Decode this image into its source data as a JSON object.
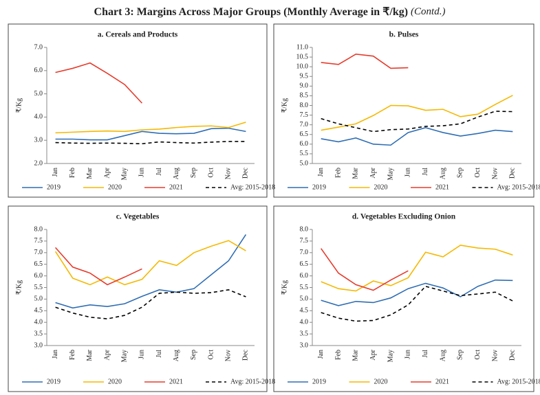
{
  "title": "Chart 3: Margins Across Major Groups (Monthly Average in ₹/kg)",
  "title_note": "(Contd.)",
  "chart_data": [
    {
      "type": "line",
      "title": "a. Cereals and Products",
      "y_label": "₹/Kg",
      "categories": [
        "Jan",
        "Feb",
        "Mar",
        "Apr",
        "May",
        "Jun",
        "Jul",
        "Aug",
        "Sep",
        "Oct",
        "Nov",
        "Dec"
      ],
      "ylim": [
        2,
        7
      ],
      "yticks": [
        {
          "value": 2,
          "label": "2.0"
        },
        {
          "value": 3,
          "label": "3.0"
        },
        {
          "value": 4,
          "label": "4.0"
        },
        {
          "value": 5,
          "label": "5.0"
        },
        {
          "value": 6,
          "label": "6.0"
        },
        {
          "value": 7,
          "label": "7.0"
        }
      ],
      "legend": "bottom",
      "series": [
        {
          "name": "2019",
          "color": "#2e6db4",
          "line_style": "solid",
          "values": [
            3.05,
            3.05,
            3.02,
            3.02,
            3.2,
            3.38,
            3.3,
            3.28,
            3.3,
            3.5,
            3.52,
            3.38
          ]
        },
        {
          "name": "2020",
          "color": "#f5b800",
          "line_style": "solid",
          "values": [
            3.32,
            3.35,
            3.38,
            3.4,
            3.38,
            3.45,
            3.48,
            3.55,
            3.6,
            3.62,
            3.55,
            3.78
          ]
        },
        {
          "name": "2021",
          "color": "#e53b2c",
          "line_style": "solid",
          "values": [
            5.92,
            6.1,
            6.33,
            5.88,
            5.4,
            4.6,
            null,
            null,
            null,
            null,
            null,
            null
          ]
        },
        {
          "name": "Avg: 2015-2018",
          "color": "#000000",
          "line_style": "dashed",
          "values": [
            2.9,
            2.88,
            2.87,
            2.88,
            2.87,
            2.85,
            2.93,
            2.9,
            2.88,
            2.92,
            2.95,
            2.95
          ]
        }
      ]
    },
    {
      "type": "line",
      "title": "b. Pulses",
      "y_label": "₹/Kg",
      "categories": [
        "Jan",
        "Feb",
        "Mar",
        "Apr",
        "May",
        "Jun",
        "Jul",
        "Aug",
        "Sep",
        "Oct",
        "Nov",
        "Dec"
      ],
      "ylim": [
        5,
        11
      ],
      "yticks": [
        {
          "value": 5,
          "label": "5.0"
        },
        5.5,
        {
          "value": 6,
          "label": "6.0"
        },
        6.5,
        {
          "value": 7,
          "label": "7.0"
        },
        7.5,
        {
          "value": 8,
          "label": "8.0"
        },
        8.5,
        {
          "value": 9,
          "label": "9.0"
        },
        9.5,
        {
          "value": 10,
          "label": "10.0"
        },
        10.5,
        {
          "value": 11,
          "label": "11.0"
        }
      ],
      "legend": "bottom",
      "series": [
        {
          "name": "2019",
          "color": "#2e6db4",
          "line_style": "solid",
          "values": [
            6.28,
            6.12,
            6.32,
            6.0,
            5.95,
            6.6,
            6.85,
            6.6,
            6.42,
            6.55,
            6.72,
            6.65
          ]
        },
        {
          "name": "2020",
          "color": "#f5b800",
          "line_style": "solid",
          "values": [
            6.72,
            6.88,
            7.05,
            7.48,
            8.0,
            7.98,
            7.75,
            7.8,
            7.42,
            7.55,
            8.05,
            8.52
          ]
        },
        {
          "name": "2021",
          "color": "#e53b2c",
          "line_style": "solid",
          "values": [
            10.22,
            10.12,
            10.65,
            10.55,
            9.92,
            9.95,
            null,
            null,
            null,
            null,
            null,
            null
          ]
        },
        {
          "name": "Avg: 2015-2018",
          "color": "#000000",
          "line_style": "dashed",
          "values": [
            7.32,
            7.05,
            6.85,
            6.65,
            6.75,
            6.78,
            6.92,
            6.95,
            7.05,
            7.4,
            7.7,
            7.68
          ]
        }
      ]
    },
    {
      "type": "line",
      "title": "c. Vegetables",
      "y_label": "₹/Kg",
      "categories": [
        "Jan",
        "Feb",
        "Mar",
        "Apr",
        "May",
        "Jun",
        "Jul",
        "Aug",
        "Sep",
        "Oct",
        "Nov",
        "Dec"
      ],
      "ylim": [
        3,
        8
      ],
      "yticks": [
        {
          "value": 3,
          "label": "3.0"
        },
        3.5,
        {
          "value": 4,
          "label": "4.0"
        },
        4.5,
        {
          "value": 5,
          "label": "5.0"
        },
        5.5,
        {
          "value": 6,
          "label": "6.0"
        },
        6.5,
        {
          "value": 7,
          "label": "7.0"
        },
        7.5,
        {
          "value": 8,
          "label": "8.0"
        }
      ],
      "legend": "bottom",
      "series": [
        {
          "name": "2019",
          "color": "#2e6db4",
          "line_style": "solid",
          "values": [
            4.85,
            4.62,
            4.75,
            4.68,
            4.8,
            5.12,
            5.4,
            5.3,
            5.45,
            6.05,
            6.65,
            7.78
          ]
        },
        {
          "name": "2020",
          "color": "#f5b800",
          "line_style": "solid",
          "values": [
            7.05,
            5.9,
            5.62,
            5.95,
            5.62,
            5.85,
            6.65,
            6.45,
            7.0,
            7.28,
            7.52,
            7.08
          ]
        },
        {
          "name": "2021",
          "color": "#e53b2c",
          "line_style": "solid",
          "values": [
            7.22,
            6.38,
            6.12,
            5.62,
            5.95,
            6.3,
            null,
            null,
            null,
            null,
            null,
            null
          ]
        },
        {
          "name": "Avg: 2015-2018",
          "color": "#000000",
          "line_style": "dashed",
          "values": [
            4.65,
            4.4,
            4.22,
            4.15,
            4.3,
            4.65,
            5.25,
            5.3,
            5.25,
            5.28,
            5.4,
            5.1
          ]
        }
      ]
    },
    {
      "type": "line",
      "title": "d. Vegetables Excluding Onion",
      "y_label": "₹/Kg",
      "categories": [
        "Jan",
        "Feb",
        "Mar",
        "Apr",
        "May",
        "Jun",
        "Jul",
        "Aug",
        "Sep",
        "Oct",
        "Nov",
        "Dec"
      ],
      "ylim": [
        3,
        8
      ],
      "yticks": [
        {
          "value": 3,
          "label": "3.0"
        },
        3.5,
        {
          "value": 4,
          "label": "4.0"
        },
        4.5,
        {
          "value": 5,
          "label": "5.0"
        },
        5.5,
        {
          "value": 6,
          "label": "6.0"
        },
        6.5,
        {
          "value": 7,
          "label": "7.0"
        },
        7.5,
        {
          "value": 8,
          "label": "8.0"
        }
      ],
      "legend": "bottom",
      "series": [
        {
          "name": "2019",
          "color": "#2e6db4",
          "line_style": "solid",
          "values": [
            4.95,
            4.72,
            4.9,
            4.85,
            5.05,
            5.45,
            5.68,
            5.48,
            5.1,
            5.55,
            5.82,
            5.8
          ]
        },
        {
          "name": "2020",
          "color": "#f5b800",
          "line_style": "solid",
          "values": [
            5.75,
            5.45,
            5.35,
            5.78,
            5.58,
            5.92,
            7.02,
            6.82,
            7.32,
            7.2,
            7.15,
            6.9
          ]
        },
        {
          "name": "2021",
          "color": "#e53b2c",
          "line_style": "solid",
          "values": [
            7.18,
            6.12,
            5.62,
            5.38,
            5.82,
            6.22,
            null,
            null,
            null,
            null,
            null,
            null
          ]
        },
        {
          "name": "Avg: 2015-2018",
          "color": "#000000",
          "line_style": "dashed",
          "values": [
            4.42,
            4.18,
            4.05,
            4.08,
            4.32,
            4.75,
            5.55,
            5.35,
            5.15,
            5.22,
            5.3,
            4.92
          ]
        }
      ]
    }
  ]
}
